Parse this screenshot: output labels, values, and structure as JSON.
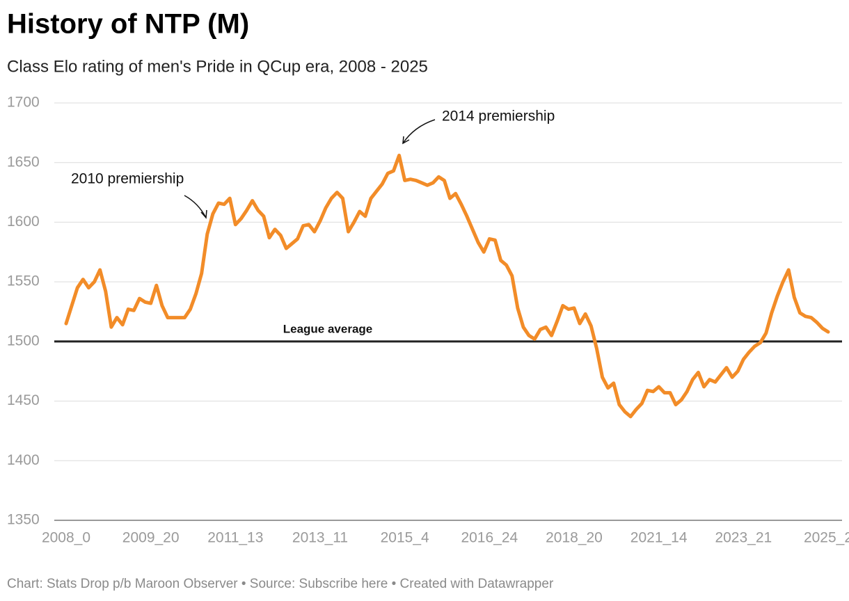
{
  "chart_data": {
    "type": "line",
    "title": "History of NTP (M)",
    "subtitle": "Class Elo rating of men's Pride in QCup era, 2008 - 2025",
    "footer": "Chart: Stats Drop p/b Maroon Observer • Source: Subscribe here • Created with Datawrapper",
    "categories": [
      "2008_0",
      null,
      null,
      null,
      null,
      null,
      null,
      null,
      null,
      null,
      null,
      null,
      null,
      null,
      null,
      "2009_20",
      null,
      null,
      null,
      null,
      null,
      null,
      null,
      null,
      null,
      null,
      null,
      null,
      null,
      null,
      "2011_13",
      null,
      null,
      null,
      null,
      null,
      null,
      null,
      null,
      null,
      null,
      null,
      null,
      null,
      null,
      "2013_11",
      null,
      null,
      null,
      null,
      null,
      null,
      null,
      null,
      null,
      null,
      null,
      null,
      null,
      null,
      "2015_4",
      null,
      null,
      null,
      null,
      null,
      null,
      null,
      null,
      null,
      null,
      null,
      null,
      null,
      null,
      "2016_24",
      null,
      null,
      null,
      null,
      null,
      null,
      null,
      null,
      null,
      null,
      null,
      null,
      null,
      null,
      "2018_20",
      null,
      null,
      null,
      null,
      null,
      null,
      null,
      null,
      null,
      null,
      null,
      null,
      null,
      null,
      "2021_14",
      null,
      null,
      null,
      null,
      null,
      null,
      null,
      null,
      null,
      null,
      null,
      null,
      null,
      null,
      "2023_21",
      null,
      null,
      null,
      null,
      null,
      null,
      null,
      null,
      null,
      null,
      null,
      null,
      null,
      null,
      "2025_2"
    ],
    "series": [
      {
        "color": "#f28c28",
        "values": [
          1515,
          1530,
          1545,
          1552,
          1545,
          1550,
          1560,
          1542,
          1512,
          1520,
          1514,
          1527,
          1526,
          1536,
          1533,
          1532,
          1547,
          1530,
          1520,
          1520,
          1520,
          1520,
          1527,
          1540,
          1557,
          1590,
          1607,
          1616,
          1615,
          1620,
          1598,
          1603,
          1610,
          1618,
          1610,
          1605,
          1587,
          1594,
          1589,
          1578,
          1582,
          1586,
          1597,
          1598,
          1592,
          1601,
          1612,
          1620,
          1625,
          1620,
          1592,
          1600,
          1609,
          1605,
          1620,
          1626,
          1632,
          1641,
          1643,
          1656,
          1635,
          1636,
          1635,
          1633,
          1631,
          1633,
          1638,
          1635,
          1620,
          1624,
          1615,
          1605,
          1594,
          1583,
          1575,
          1586,
          1585,
          1568,
          1564,
          1555,
          1528,
          1512,
          1505,
          1502,
          1510,
          1512,
          1505,
          1517,
          1530,
          1527,
          1528,
          1515,
          1523,
          1513,
          1494,
          1470,
          1461,
          1465,
          1447,
          1441,
          1437,
          1443,
          1448,
          1459,
          1458,
          1462,
          1457,
          1457,
          1447,
          1451,
          1458,
          1468,
          1474,
          1462,
          1468,
          1466,
          1472,
          1478,
          1470,
          1475,
          1485,
          1491,
          1496,
          1499,
          1507,
          1524,
          1538,
          1550,
          1560,
          1537,
          1524,
          1521,
          1520,
          1516,
          1511,
          1508
        ]
      }
    ],
    "ylim": [
      1350,
      1700
    ],
    "yticks": [
      1350,
      1400,
      1450,
      1500,
      1550,
      1600,
      1650,
      1700
    ],
    "grid": true,
    "reference_line": {
      "value": 1500,
      "label": "League average"
    },
    "annotations": [
      "2010 premiership",
      "2014 premiership"
    ]
  }
}
